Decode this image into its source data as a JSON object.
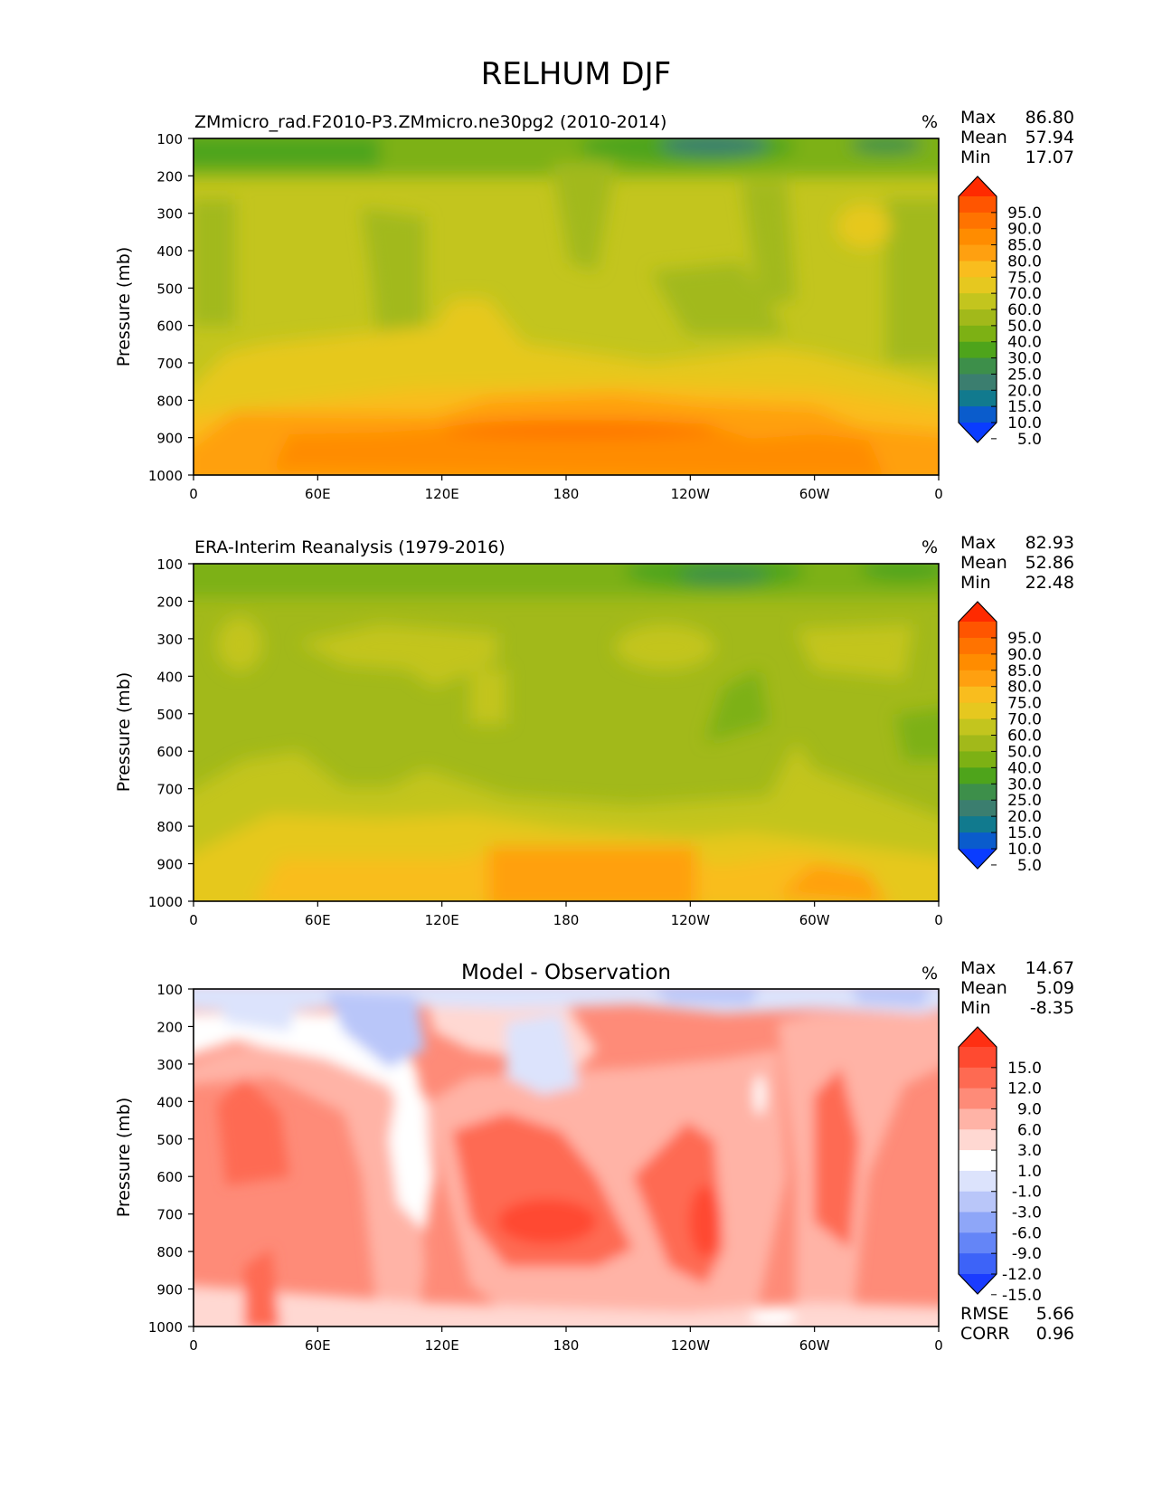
{
  "figure": {
    "title": "RELHUM DJF"
  },
  "chart_data": [
    {
      "type": "heatmap",
      "title": "ZMmicro_rad.F2010-P3.ZMmicro.ne30pg2 (2010-2014)",
      "units": "%",
      "xlabel": "",
      "ylabel": "Pressure (mb)",
      "xticks": [
        "0",
        "60E",
        "120E",
        "180",
        "120W",
        "60W",
        "0"
      ],
      "yticks": [
        "100",
        "200",
        "300",
        "400",
        "500",
        "600",
        "700",
        "800",
        "900",
        "1000"
      ],
      "ylim": [
        1000,
        100
      ],
      "stats": [
        {
          "label": "Max",
          "value": "86.80"
        },
        {
          "label": "Mean",
          "value": "57.94"
        },
        {
          "label": "Min",
          "value": "17.07"
        }
      ],
      "colorbar": {
        "labels": [
          "95.0",
          "90.0",
          "85.0",
          "80.0",
          "75.0",
          "70.0",
          "60.0",
          "50.0",
          "40.0",
          "30.0",
          "25.0",
          "20.0",
          "15.0",
          "10.0",
          "5.0"
        ],
        "colors": [
          "#ff2a00",
          "#ff5500",
          "#ff7300",
          "#ff8c00",
          "#ffa010",
          "#f9bd1e",
          "#e6c81f",
          "#c3c51e",
          "#a2b91a",
          "#7db114",
          "#4ea41b",
          "#3d8f4a",
          "#3b7e6f",
          "#117a8e",
          "#0a5ccc",
          "#0a3cff"
        ]
      }
    },
    {
      "type": "heatmap",
      "title": "ERA-Interim Reanalysis (1979-2016)",
      "units": "%",
      "xlabel": "",
      "ylabel": "Pressure (mb)",
      "xticks": [
        "0",
        "60E",
        "120E",
        "180",
        "120W",
        "60W",
        "0"
      ],
      "yticks": [
        "100",
        "200",
        "300",
        "400",
        "500",
        "600",
        "700",
        "800",
        "900",
        "1000"
      ],
      "ylim": [
        1000,
        100
      ],
      "stats": [
        {
          "label": "Max",
          "value": "82.93"
        },
        {
          "label": "Mean",
          "value": "52.86"
        },
        {
          "label": "Min",
          "value": "22.48"
        }
      ],
      "colorbar": {
        "labels": [
          "95.0",
          "90.0",
          "85.0",
          "80.0",
          "75.0",
          "70.0",
          "60.0",
          "50.0",
          "40.0",
          "30.0",
          "25.0",
          "20.0",
          "15.0",
          "10.0",
          "5.0"
        ],
        "colors": [
          "#ff2a00",
          "#ff5500",
          "#ff7300",
          "#ff8c00",
          "#ffa010",
          "#f9bd1e",
          "#e6c81f",
          "#c3c51e",
          "#a2b91a",
          "#7db114",
          "#4ea41b",
          "#3d8f4a",
          "#3b7e6f",
          "#117a8e",
          "#0a5ccc",
          "#0a3cff"
        ]
      }
    },
    {
      "type": "heatmap",
      "title": "Model - Observation",
      "units": "%",
      "xlabel": "",
      "ylabel": "Pressure (mb)",
      "xticks": [
        "0",
        "60E",
        "120E",
        "180",
        "120W",
        "60W",
        "0"
      ],
      "yticks": [
        "100",
        "200",
        "300",
        "400",
        "500",
        "600",
        "700",
        "800",
        "900",
        "1000"
      ],
      "ylim": [
        1000,
        100
      ],
      "stats": [
        {
          "label": "Max",
          "value": "14.67"
        },
        {
          "label": "Mean",
          "value": "5.09"
        },
        {
          "label": "Min",
          "value": "-8.35"
        }
      ],
      "extra_stats": [
        {
          "label": "RMSE",
          "value": "5.66"
        },
        {
          "label": "CORR",
          "value": "0.96"
        }
      ],
      "colorbar": {
        "labels": [
          "15.0",
          "12.0",
          "9.0",
          "6.0",
          "3.0",
          "1.0",
          "-1.0",
          "-3.0",
          "-6.0",
          "-9.0",
          "-12.0",
          "-15.0"
        ],
        "colors": [
          "#ff2f12",
          "#ff4a30",
          "#fe6a52",
          "#fe8b78",
          "#ffb3a6",
          "#ffd8d2",
          "#ffffff",
          "#dce3fc",
          "#b9c6f9",
          "#8ea6f8",
          "#6485f7",
          "#3d63f8",
          "#1a3cff"
        ]
      }
    }
  ]
}
